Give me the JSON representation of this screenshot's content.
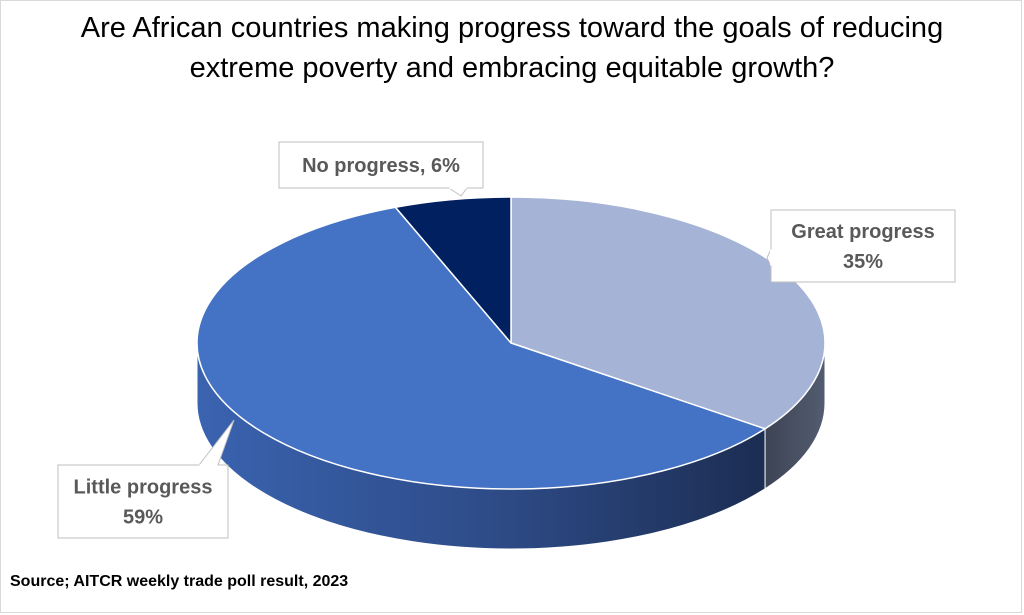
{
  "chart_data": {
    "type": "pie",
    "title": "Are African countries making progress toward the goals of reducing extreme poverty and embracing equitable growth?",
    "categories": [
      "Great progress",
      "Little progress",
      "No progress"
    ],
    "values": [
      35,
      59,
      6
    ],
    "unit": "%",
    "labels": [
      {
        "lines": [
          "Great progress",
          "35%"
        ]
      },
      {
        "lines": [
          "Little progress",
          "59%"
        ]
      },
      {
        "lines": [
          "No progress, 6%"
        ]
      }
    ],
    "colors": [
      "#a5b3d7",
      "#4472c4",
      "#002060"
    ],
    "side_colors": [
      "#454d5e",
      "#2e4f8e",
      "#001a4d"
    ],
    "legend": "none",
    "style": "3d",
    "source": "Source; AITCR weekly trade poll result, 2023"
  }
}
